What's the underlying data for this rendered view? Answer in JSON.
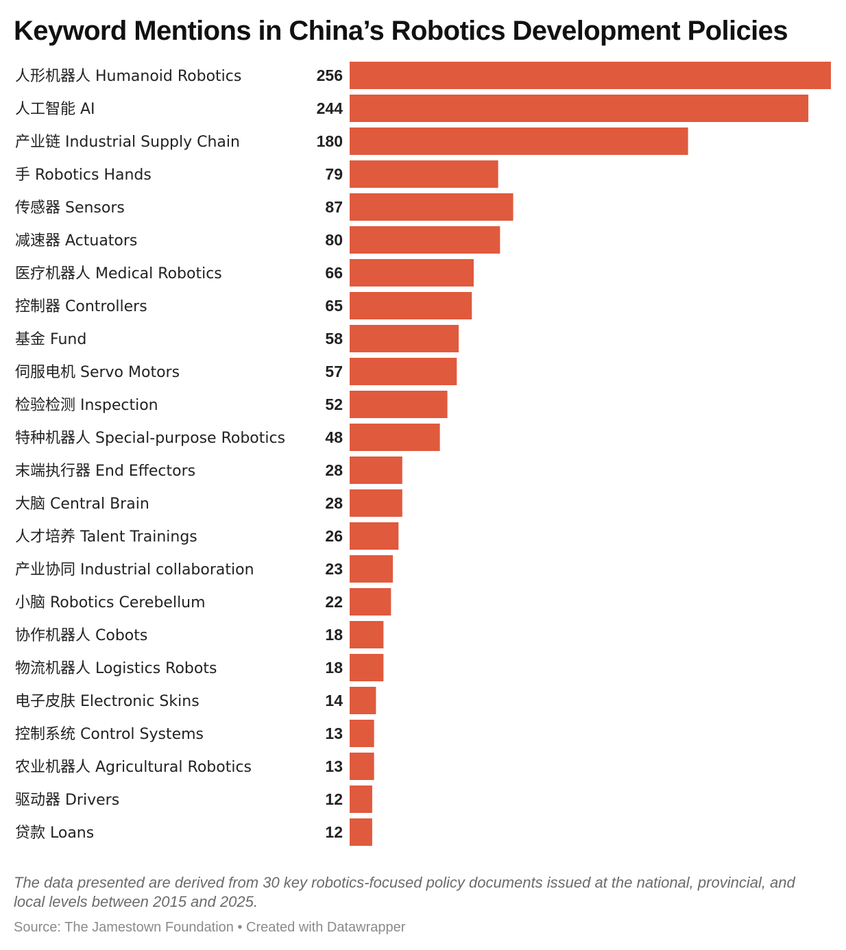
{
  "chart_data": {
    "type": "bar",
    "orientation": "horizontal",
    "title": "Keyword Mentions in China’s Robotics Development Policies",
    "categories": [
      "人形机器人 Humanoid Robotics",
      "人工智能 AI",
      "产业链 Industrial Supply Chain",
      "手 Robotics Hands",
      "传感器 Sensors",
      "减速器 Actuators",
      "医疗机器人 Medical Robotics",
      "控制器 Controllers",
      "基金 Fund",
      "伺服电机 Servo Motors",
      "检验检测 Inspection",
      "特种机器人 Special-purpose Robotics",
      "末端执行器 End Effectors",
      "大脑 Central Brain",
      "人才培养 Talent Trainings",
      "产业协同 Industrial collaboration",
      "小脑 Robotics Cerebellum",
      "协作机器人 Cobots",
      "物流机器人 Logistics Robots",
      "电子皮肤 Electronic Skins",
      "控制系统 Control Systems",
      "农业机器人 Agricultural Robotics",
      "驱动器 Drivers",
      "贷款 Loans"
    ],
    "values": [
      256,
      244,
      180,
      79,
      87,
      80,
      66,
      65,
      58,
      57,
      52,
      48,
      28,
      28,
      26,
      23,
      22,
      18,
      18,
      14,
      13,
      13,
      12,
      12
    ],
    "xlim": [
      0,
      256
    ],
    "bar_color": "#e05a3e",
    "value_labels": "bold, left of bars",
    "grid": false,
    "legend": "none"
  },
  "footer": {
    "note": "The data presented are derived from 30 key robotics-focused policy documents issued at the national, provincial, and local levels between 2015 and 2025.",
    "source": "Source: The Jamestown Foundation • Created with Datawrapper"
  }
}
